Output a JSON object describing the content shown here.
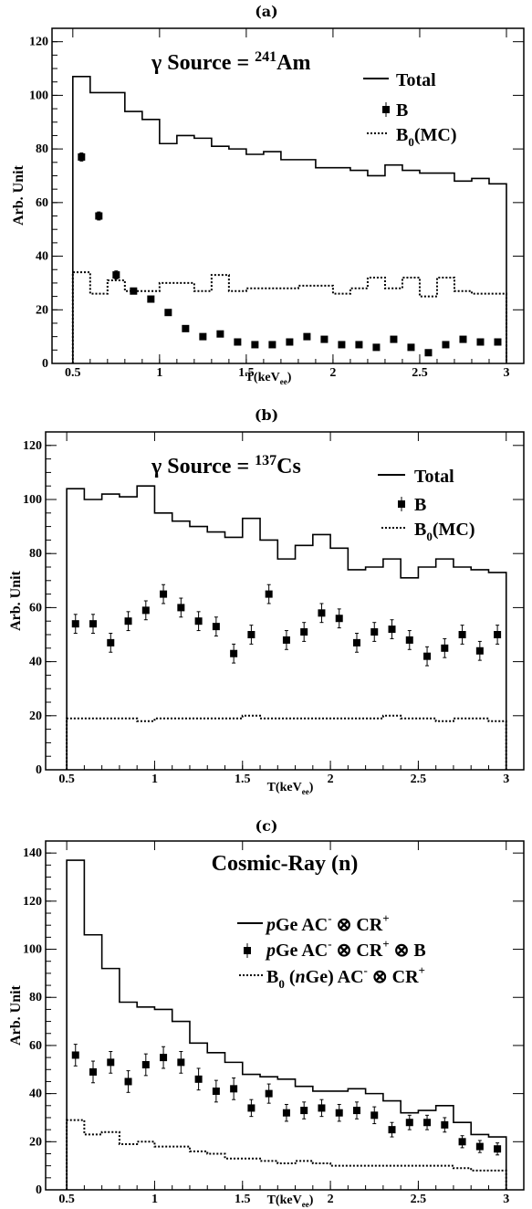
{
  "chart_data": [
    {
      "panel_label": "(a)",
      "type": "line",
      "title_parts": [
        "γ Source = ",
        "241",
        "Am"
      ],
      "xlabel_parts": [
        "T(keV",
        "ee",
        ")"
      ],
      "ylabel": "Arb. Unit",
      "xlim": [
        0.38,
        3.1
      ],
      "ylim": [
        0,
        125
      ],
      "xticks": [
        "0.5",
        "1",
        "1.5",
        "2",
        "2.5",
        "3"
      ],
      "xtick_values": [
        0.5,
        1,
        1.5,
        2,
        2.5,
        3
      ],
      "yticks": [
        "0",
        "20",
        "40",
        "60",
        "80",
        "100",
        "120"
      ],
      "ytick_values": [
        0,
        20,
        40,
        60,
        80,
        100,
        120
      ],
      "bin_edges": [
        0.5,
        0.6,
        0.7,
        0.8,
        0.9,
        1.0,
        1.1,
        1.2,
        1.3,
        1.4,
        1.5,
        1.6,
        1.7,
        1.8,
        1.9,
        2.0,
        2.1,
        2.2,
        2.3,
        2.4,
        2.5,
        2.6,
        2.7,
        2.8,
        2.9,
        3.0
      ],
      "series": [
        {
          "name_parts": [
            "Total"
          ],
          "style": "hist-solid",
          "values": [
            107,
            101,
            101,
            94,
            91,
            82,
            85,
            84,
            81,
            80,
            78,
            79,
            76,
            76,
            73,
            73,
            72,
            70,
            74,
            72,
            71,
            71,
            68,
            69,
            67
          ]
        },
        {
          "name_parts": [
            "B"
          ],
          "style": "points",
          "x": [
            0.55,
            0.65,
            0.75,
            0.85,
            0.95,
            1.05,
            1.15,
            1.25,
            1.35,
            1.45,
            1.55,
            1.65,
            1.75,
            1.85,
            1.95,
            2.05,
            2.15,
            2.25,
            2.35,
            2.45,
            2.55,
            2.65,
            2.75,
            2.85,
            2.95
          ],
          "values": [
            77,
            55,
            33,
            27,
            24,
            19,
            13,
            10,
            11,
            8,
            7,
            7,
            8,
            10,
            9,
            7,
            7,
            6,
            9,
            6,
            4,
            7,
            9,
            8,
            8
          ],
          "errors": [
            1.5,
            1.5,
            1.5,
            1,
            1,
            1,
            1,
            1,
            1,
            1,
            1,
            1,
            1,
            1,
            1,
            1,
            1,
            1,
            1,
            1,
            1,
            1,
            1,
            1,
            1
          ]
        },
        {
          "name_parts": [
            "B",
            "0",
            "(MC)"
          ],
          "style": "hist-dotted",
          "values": [
            34,
            26,
            31,
            27,
            27,
            30,
            30,
            27,
            33,
            27,
            28,
            28,
            28,
            29,
            29,
            26,
            28,
            32,
            28,
            32,
            25,
            32,
            27,
            26,
            26
          ]
        }
      ],
      "legend_pos": "top-right"
    },
    {
      "panel_label": "(b)",
      "type": "line",
      "title_parts": [
        "γ Source = ",
        "137",
        "Cs"
      ],
      "xlabel_parts": [
        "T(keV",
        "ee",
        ")"
      ],
      "ylabel": "Arb. Unit",
      "xlim": [
        0.38,
        3.1
      ],
      "ylim": [
        0,
        125
      ],
      "xticks": [
        "0.5",
        "1",
        "1.5",
        "2",
        "2.5",
        "3"
      ],
      "xtick_values": [
        0.5,
        1,
        1.5,
        2,
        2.5,
        3
      ],
      "yticks": [
        "0",
        "20",
        "40",
        "60",
        "80",
        "100",
        "120"
      ],
      "ytick_values": [
        0,
        20,
        40,
        60,
        80,
        100,
        120
      ],
      "bin_edges": [
        0.5,
        0.6,
        0.7,
        0.8,
        0.9,
        1.0,
        1.1,
        1.2,
        1.3,
        1.4,
        1.5,
        1.6,
        1.7,
        1.8,
        1.9,
        2.0,
        2.1,
        2.2,
        2.3,
        2.4,
        2.5,
        2.6,
        2.7,
        2.8,
        2.9,
        3.0
      ],
      "series": [
        {
          "name_parts": [
            "Total"
          ],
          "style": "hist-solid",
          "values": [
            104,
            100,
            102,
            101,
            105,
            95,
            92,
            90,
            88,
            86,
            93,
            85,
            78,
            83,
            87,
            82,
            74,
            75,
            78,
            71,
            75,
            78,
            75,
            74,
            73
          ]
        },
        {
          "name_parts": [
            "B"
          ],
          "style": "points",
          "x": [
            0.55,
            0.65,
            0.75,
            0.85,
            0.95,
            1.05,
            1.15,
            1.25,
            1.35,
            1.45,
            1.55,
            1.65,
            1.75,
            1.85,
            1.95,
            2.05,
            2.15,
            2.25,
            2.35,
            2.45,
            2.55,
            2.65,
            2.75,
            2.85,
            2.95
          ],
          "values": [
            54,
            54,
            47,
            55,
            59,
            65,
            60,
            55,
            53,
            43,
            50,
            65,
            48,
            51,
            58,
            56,
            47,
            51,
            52,
            48,
            42,
            45,
            50,
            44,
            50
          ],
          "errors": [
            3.5,
            3.5,
            3.5,
            3.5,
            3.5,
            3.5,
            3.5,
            3.5,
            3.5,
            3.5,
            3.5,
            3.5,
            3.5,
            3.5,
            3.5,
            3.5,
            3.5,
            3.5,
            3.5,
            3.5,
            3.5,
            3.5,
            3.5,
            3.5,
            3.5
          ]
        },
        {
          "name_parts": [
            "B",
            "0",
            "(MC)"
          ],
          "style": "hist-dotted",
          "values": [
            19,
            19,
            19,
            19,
            18,
            19,
            19,
            19,
            19,
            19,
            20,
            19,
            19,
            19,
            19,
            19,
            19,
            19,
            20,
            19,
            19,
            18,
            19,
            19,
            18
          ]
        }
      ],
      "legend_pos": "top-right"
    },
    {
      "panel_label": "(c)",
      "type": "line",
      "title_parts": [
        "Cosmic-Ray (n)"
      ],
      "xlabel_parts": [
        "T(keV",
        "ee",
        ")"
      ],
      "ylabel": "Arb. Unit",
      "xlim": [
        0.38,
        3.1
      ],
      "ylim": [
        0,
        145
      ],
      "xticks": [
        "0.5",
        "1",
        "1.5",
        "2",
        "2.5",
        "3"
      ],
      "xtick_values": [
        0.5,
        1,
        1.5,
        2,
        2.5,
        3
      ],
      "yticks": [
        "0",
        "20",
        "40",
        "60",
        "80",
        "100",
        "120",
        "140"
      ],
      "ytick_values": [
        0,
        20,
        40,
        60,
        80,
        100,
        120,
        140
      ],
      "bin_edges": [
        0.5,
        0.6,
        0.7,
        0.8,
        0.9,
        1.0,
        1.1,
        1.2,
        1.3,
        1.4,
        1.5,
        1.6,
        1.7,
        1.8,
        1.9,
        2.0,
        2.1,
        2.2,
        2.3,
        2.4,
        2.5,
        2.6,
        2.7,
        2.8,
        2.9,
        3.0
      ],
      "series": [
        {
          "name_parts": [
            "p",
            "Ge AC",
            "-",
            " ⊗ CR",
            "+"
          ],
          "style": "hist-solid",
          "values": [
            137,
            106,
            92,
            78,
            76,
            75,
            70,
            61,
            57,
            53,
            48,
            47,
            46,
            43,
            41,
            41,
            42,
            40,
            37,
            32,
            33,
            35,
            28,
            23,
            22
          ]
        },
        {
          "name_parts": [
            "p",
            "Ge AC",
            "-",
            " ⊗ CR",
            "+",
            " ⊗  B"
          ],
          "style": "points",
          "x": [
            0.55,
            0.65,
            0.75,
            0.85,
            0.95,
            1.05,
            1.15,
            1.25,
            1.35,
            1.45,
            1.55,
            1.65,
            1.75,
            1.85,
            1.95,
            2.05,
            2.15,
            2.25,
            2.35,
            2.45,
            2.55,
            2.65,
            2.75,
            2.85,
            2.95
          ],
          "values": [
            56,
            49,
            53,
            45,
            52,
            55,
            53,
            46,
            41,
            42,
            34,
            40,
            32,
            33,
            34,
            32,
            33,
            31,
            25,
            28,
            28,
            27,
            20,
            18,
            17
          ],
          "errors": [
            4.5,
            4.5,
            4.5,
            4.5,
            4.5,
            4.5,
            4.5,
            4.5,
            4.5,
            4.5,
            3.5,
            4,
            3.5,
            3.5,
            3.5,
            3.5,
            3.5,
            3.5,
            3,
            3,
            3,
            3,
            2.5,
            2.5,
            2.5
          ]
        },
        {
          "name_parts": [
            "B",
            "0",
            " (",
            "n",
            "Ge) AC",
            "-",
            " ⊗ CR",
            "+"
          ],
          "style": "hist-dotted",
          "values": [
            29,
            23,
            24,
            19,
            20,
            18,
            18,
            16,
            15,
            13,
            13,
            12,
            11,
            12,
            11,
            10,
            10,
            10,
            10,
            10,
            10,
            10,
            9,
            8,
            8
          ]
        }
      ],
      "legend_pos": "top-right"
    }
  ]
}
